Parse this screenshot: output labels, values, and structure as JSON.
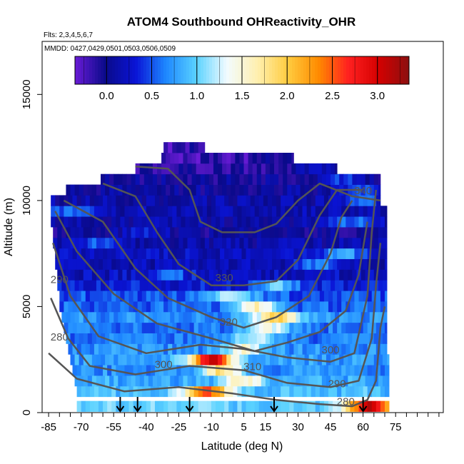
{
  "chart_data": {
    "type": "heatmap",
    "title": "ATOM4 Southbound OHReactivity_OHR",
    "subtitle_flights": "Flts: 2,3,4,5,6,7",
    "subtitle_dates": "MMDD: 0427,0429,0501,0503,0506,0509",
    "xlabel": "Latitude (deg N)",
    "ylabel": "Altitude (m)",
    "xlim": [
      -88,
      97
    ],
    "ylim": [
      0,
      17500
    ],
    "x_ticks": [
      -85,
      -70,
      -55,
      -40,
      -25,
      -10,
      5,
      15,
      30,
      45,
      60,
      75
    ],
    "x_minor_step": 5,
    "y_ticks": [
      0,
      5000,
      10000,
      15000
    ],
    "colorbar": {
      "range": [
        -0.35,
        3.35
      ],
      "ticks": [
        0.0,
        0.5,
        1.0,
        1.5,
        2.0,
        2.5,
        3.0
      ],
      "colors": [
        "#6a1bd6",
        "#0a0a8a",
        "#0a14d6",
        "#1e88ff",
        "#5ad2ff",
        "#f2fbff",
        "#fff0b0",
        "#ffcc40",
        "#ff8c00",
        "#ff2020",
        "#d40000",
        "#8b1010"
      ]
    },
    "curtain_layers": [
      {
        "alt": 300,
        "lat_min": -72,
        "lat_max": 72,
        "value": 1.0,
        "hot_at": 63,
        "hot_value": 3.1
      },
      {
        "alt": 1000,
        "lat_min": -72,
        "lat_max": 72,
        "value": 0.9,
        "hot_at": -12,
        "hot_value": 2.6
      },
      {
        "alt": 1500,
        "lat_min": -73,
        "lat_max": 72,
        "value": 0.8,
        "hot_at": 5,
        "hot_value": 1.6
      },
      {
        "alt": 2000,
        "lat_min": -74,
        "lat_max": 72,
        "value": 0.7,
        "hot_at": -5,
        "hot_value": 1.8
      },
      {
        "alt": 2500,
        "lat_min": -75,
        "lat_max": 72,
        "value": 0.75,
        "hot_at": -10,
        "hot_value": 3.0
      },
      {
        "alt": 3000,
        "lat_min": -76,
        "lat_max": 71,
        "value": 0.7,
        "hot_at": 5,
        "hot_value": 1.5
      },
      {
        "alt": 3500,
        "lat_min": -77,
        "lat_max": 71,
        "value": 0.6,
        "hot_at": 10,
        "hot_value": 1.3
      },
      {
        "alt": 4000,
        "lat_min": -78,
        "lat_max": 71,
        "value": 0.6,
        "hot_at": 15,
        "hot_value": 1.5
      },
      {
        "alt": 4500,
        "lat_min": -79,
        "lat_max": 71,
        "value": 0.7,
        "hot_at": 20,
        "hot_value": 2.0
      },
      {
        "alt": 5000,
        "lat_min": -80,
        "lat_max": 71,
        "value": 0.55,
        "hot_at": 10,
        "hot_value": 1.6
      },
      {
        "alt": 5500,
        "lat_min": -80,
        "lat_max": 71,
        "value": 0.5,
        "hot_at": 0,
        "hot_value": 1.3
      },
      {
        "alt": 6000,
        "lat_min": -81,
        "lat_max": 71,
        "value": 0.3,
        "hot_at": 20,
        "hot_value": 1.0
      },
      {
        "alt": 6500,
        "lat_min": -81,
        "lat_max": 71,
        "value": 0.2,
        "hot_at": -30,
        "hot_value": 0.6
      },
      {
        "alt": 7000,
        "lat_min": -82,
        "lat_max": 71,
        "value": 0.15,
        "hot_at": 40,
        "hot_value": 0.7
      },
      {
        "alt": 7500,
        "lat_min": -82,
        "lat_max": 71,
        "value": 0.2,
        "hot_at": 50,
        "hot_value": 0.8
      },
      {
        "alt": 8000,
        "lat_min": -83,
        "lat_max": 71,
        "value": 0.1,
        "hot_at": -60,
        "hot_value": 0.6
      },
      {
        "alt": 8500,
        "lat_min": -83,
        "lat_max": 71,
        "value": 0.0,
        "hot_at": -40,
        "hot_value": 0.4
      },
      {
        "alt": 9000,
        "lat_min": -84,
        "lat_max": 71,
        "value": 0.1,
        "hot_at": 55,
        "hot_value": 0.6
      },
      {
        "alt": 9500,
        "lat_min": -84,
        "lat_max": 71,
        "value": 0.15,
        "hot_at": -75,
        "hot_value": 0.6
      },
      {
        "alt": 10000,
        "lat_min": -84,
        "lat_max": 68,
        "value": 0.1,
        "hot_at": 60,
        "hot_value": 0.5
      },
      {
        "alt": 10500,
        "lat_min": -77,
        "lat_max": 68,
        "value": 0.05,
        "hot_at": 60,
        "hot_value": 0.4
      },
      {
        "alt": 11000,
        "lat_min": -61,
        "lat_max": 68,
        "value": 0.0,
        "hot_at": 50,
        "hot_value": 0.4
      },
      {
        "alt": 11500,
        "lat_min": -45,
        "lat_max": 48,
        "value": -0.1,
        "hot_at": 40,
        "hot_value": 0.2
      },
      {
        "alt": 12000,
        "lat_min": -33,
        "lat_max": 28,
        "value": -0.2,
        "hot_at": 20,
        "hot_value": 0.0
      },
      {
        "alt": 12500,
        "lat_min": -32,
        "lat_max": -13,
        "value": -0.25,
        "hot_at": -20,
        "hot_value": -0.1
      }
    ],
    "contours": [
      {
        "label": "280",
        "points": [
          [
            -85,
            2800
          ],
          [
            -72,
            1600
          ],
          [
            -50,
            1000
          ],
          [
            -25,
            1200
          ],
          [
            0,
            900
          ],
          [
            20,
            600
          ],
          [
            40,
            400
          ],
          [
            55,
            300
          ],
          [
            62,
            600
          ],
          [
            66,
            1500
          ],
          [
            68,
            4000
          ],
          [
            70,
            5000
          ]
        ]
      },
      {
        "label": "290",
        "points": [
          [
            -84,
            5400
          ],
          [
            -76,
            3500
          ],
          [
            -66,
            2200
          ],
          [
            -45,
            1800
          ],
          [
            -20,
            2200
          ],
          [
            5,
            2000
          ],
          [
            25,
            1400
          ],
          [
            45,
            1200
          ],
          [
            58,
            1500
          ],
          [
            64,
            3500
          ],
          [
            66,
            6000
          ],
          [
            68,
            8000
          ]
        ]
      },
      {
        "label": "300",
        "points": [
          [
            -83,
            8000
          ],
          [
            -75,
            5500
          ],
          [
            -62,
            3600
          ],
          [
            -40,
            2800
          ],
          [
            -15,
            3200
          ],
          [
            5,
            3000
          ],
          [
            25,
            2600
          ],
          [
            45,
            2400
          ],
          [
            56,
            2800
          ],
          [
            62,
            5500
          ],
          [
            64,
            8500
          ],
          [
            66,
            10500
          ]
        ]
      },
      {
        "label": "310",
        "points": [
          [
            -82,
            9500
          ],
          [
            -72,
            7600
          ],
          [
            -55,
            5600
          ],
          [
            -35,
            4200
          ],
          [
            -10,
            3500
          ],
          [
            10,
            2900
          ],
          [
            25,
            3300
          ],
          [
            40,
            3800
          ],
          [
            52,
            4800
          ],
          [
            58,
            6500
          ],
          [
            62,
            9000
          ]
        ]
      },
      {
        "label": "320",
        "points": [
          [
            -78,
            10000
          ],
          [
            -60,
            9000
          ],
          [
            -45,
            6800
          ],
          [
            -30,
            5400
          ],
          [
            -10,
            4500
          ],
          [
            5,
            4000
          ],
          [
            20,
            4500
          ],
          [
            35,
            5500
          ],
          [
            45,
            7500
          ],
          [
            50,
            9200
          ],
          [
            55,
            10000
          ]
        ]
      },
      {
        "label": "330",
        "points": [
          [
            -60,
            10800
          ],
          [
            -45,
            10200
          ],
          [
            -35,
            8500
          ],
          [
            -25,
            7000
          ],
          [
            -10,
            6000
          ],
          [
            5,
            6000
          ],
          [
            20,
            6200
          ],
          [
            30,
            7200
          ],
          [
            40,
            9300
          ],
          [
            48,
            10500
          ],
          [
            60,
            10500
          ]
        ]
      },
      {
        "label": "340",
        "points": [
          [
            -45,
            11600
          ],
          [
            -30,
            11500
          ],
          [
            -20,
            10500
          ],
          [
            -15,
            9000
          ],
          [
            -5,
            8500
          ],
          [
            10,
            8500
          ],
          [
            20,
            8900
          ],
          [
            30,
            10000
          ],
          [
            40,
            10800
          ],
          [
            55,
            10200
          ],
          [
            68,
            10000
          ]
        ]
      }
    ],
    "annotations": [
      {
        "text": "280",
        "x": -80,
        "y": 3400
      },
      {
        "text": "290",
        "x": -80,
        "y": 6100
      },
      {
        "text": "280",
        "x": 52,
        "y": 350
      },
      {
        "text": "290",
        "x": 48,
        "y": 1200
      },
      {
        "text": "300",
        "x": -32,
        "y": 2100
      },
      {
        "text": "300",
        "x": 45,
        "y": 2800
      },
      {
        "text": "310",
        "x": 9,
        "y": 2000
      },
      {
        "text": "320",
        "x": -2,
        "y": 4100
      },
      {
        "text": "330",
        "x": -4,
        "y": 6200
      },
      {
        "text": "340",
        "x": 60,
        "y": 10300
      }
    ],
    "arrows_lat": [
      -52,
      -44,
      -20,
      19,
      60
    ]
  }
}
